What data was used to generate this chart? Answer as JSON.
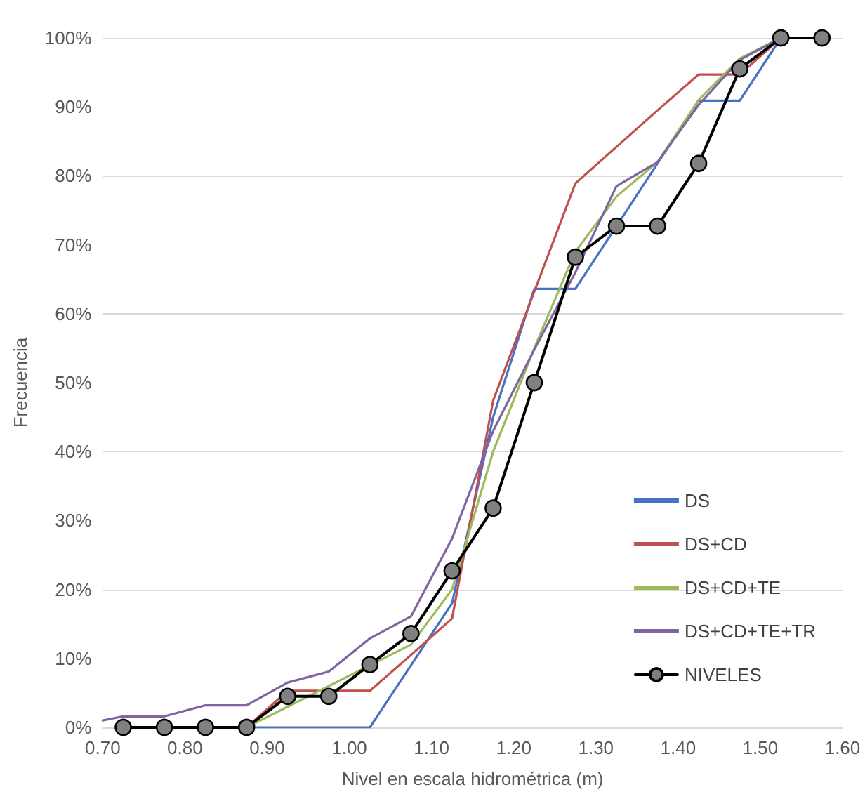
{
  "chart_data": {
    "type": "line",
    "xlabel": "Nivel en escala hidrométrica (m)",
    "ylabel": "Frecuencia",
    "xlim": [
      0.7,
      1.6
    ],
    "xticks": [
      {
        "value": 0.7,
        "label": "0.70"
      },
      {
        "value": 0.8,
        "label": "0.80"
      },
      {
        "value": 0.9,
        "label": "0.90"
      },
      {
        "value": 1.0,
        "label": "1.00"
      },
      {
        "value": 1.1,
        "label": "1.10"
      },
      {
        "value": 1.2,
        "label": "1.20"
      },
      {
        "value": 1.3,
        "label": "1.30"
      },
      {
        "value": 1.4,
        "label": "1.40"
      },
      {
        "value": 1.5,
        "label": "1.50"
      },
      {
        "value": 1.6,
        "label": "1.60"
      }
    ],
    "ylim": [
      0,
      100
    ],
    "yticks": [
      {
        "value": 0,
        "label": "0%"
      },
      {
        "value": 10,
        "label": "10%"
      },
      {
        "value": 20,
        "label": "20%"
      },
      {
        "value": 30,
        "label": "30%"
      },
      {
        "value": 40,
        "label": "40%"
      },
      {
        "value": 50,
        "label": "50%"
      },
      {
        "value": 60,
        "label": "60%"
      },
      {
        "value": 70,
        "label": "70%"
      },
      {
        "value": 80,
        "label": "80%"
      },
      {
        "value": 90,
        "label": "90%"
      },
      {
        "value": 100,
        "label": "100%"
      }
    ],
    "grid": "y",
    "legend": "bottom right",
    "line_style": "solid",
    "series": [
      {
        "name": "DS",
        "color": "#4472c4",
        "marker": "none",
        "x": [
          0.875,
          0.925,
          0.975,
          1.025,
          1.075,
          1.125,
          1.175,
          1.225,
          1.275,
          1.325,
          1.375,
          1.425,
          1.475,
          1.525
        ],
        "values": [
          0,
          0,
          0,
          0,
          9,
          18,
          45,
          63.6,
          63.6,
          72.7,
          81.8,
          90.9,
          90.9,
          100
        ]
      },
      {
        "name": "DS+CD",
        "color": "#c0504d",
        "marker": "none",
        "x": [
          0.875,
          0.925,
          0.975,
          1.025,
          1.075,
          1.125,
          1.175,
          1.225,
          1.275,
          1.325,
          1.375,
          1.425,
          1.475,
          1.525
        ],
        "values": [
          0,
          5.3,
          5.3,
          5.3,
          10.5,
          15.8,
          47.4,
          63.2,
          78.9,
          84.2,
          89.5,
          94.7,
          94.7,
          100
        ]
      },
      {
        "name": "DS+CD+TE",
        "color": "#9bbb59",
        "marker": "none",
        "x": [
          0.875,
          0.925,
          0.975,
          1.025,
          1.075,
          1.125,
          1.175,
          1.225,
          1.275,
          1.325,
          1.375,
          1.425,
          1.475,
          1.525
        ],
        "values": [
          0,
          3,
          6,
          9,
          12,
          20,
          40,
          55,
          69,
          77,
          82,
          91,
          97,
          100
        ]
      },
      {
        "name": "DS+CD+TE+TR",
        "color": "#8064a2",
        "marker": "none",
        "x": [
          0.7,
          0.725,
          0.775,
          0.825,
          0.875,
          0.925,
          0.975,
          1.025,
          1.075,
          1.125,
          1.175,
          1.225,
          1.275,
          1.325,
          1.375,
          1.425,
          1.475,
          1.525
        ],
        "values": [
          1,
          1.6,
          1.6,
          3.2,
          3.2,
          6.5,
          8.1,
          12.9,
          16.1,
          27.4,
          43,
          54.8,
          66,
          78.5,
          82,
          90.3,
          96.8,
          100
        ]
      },
      {
        "name": "NIVELES",
        "color": "#000000",
        "marker": "circle",
        "x": [
          0.725,
          0.775,
          0.825,
          0.875,
          0.925,
          0.975,
          1.025,
          1.075,
          1.125,
          1.175,
          1.225,
          1.275,
          1.325,
          1.375,
          1.425,
          1.475,
          1.525,
          1.575
        ],
        "values": [
          0,
          0,
          0,
          0,
          4.5,
          4.5,
          9.1,
          13.6,
          22.7,
          31.8,
          50,
          68.2,
          72.7,
          72.7,
          81.8,
          95.5,
          100,
          100
        ]
      }
    ]
  }
}
